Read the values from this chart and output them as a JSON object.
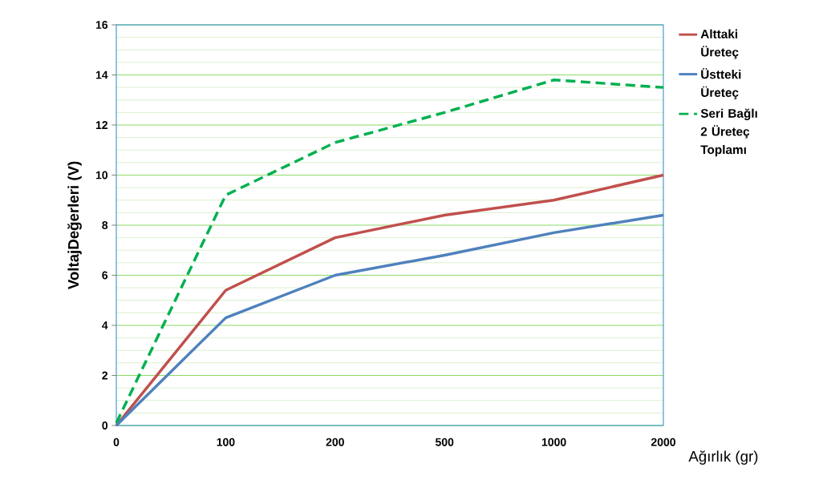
{
  "chart_data": {
    "type": "line",
    "xlabel": "Ağırlık (gr)",
    "ylabel": "VoltajDeğerleri (V)",
    "categories": [
      "0",
      "100",
      "200",
      "500",
      "1000",
      "2000"
    ],
    "series": [
      {
        "name": "Alttaki Üreteç",
        "color": "#c0504d",
        "values": [
          0,
          5.4,
          7.5,
          8.4,
          9.0,
          10.0
        ]
      },
      {
        "name": "Üstteki Üreteç",
        "color": "#4f81bd",
        "values": [
          0,
          4.3,
          6.0,
          6.8,
          7.7,
          8.4
        ]
      },
      {
        "name": "Seri Bağlı 2 Üreteç Toplamı",
        "color": "#00b050",
        "line_style": "dashed",
        "values": [
          0.1,
          9.2,
          11.3,
          12.5,
          13.8,
          13.5
        ]
      }
    ],
    "ylim": [
      0,
      16
    ],
    "yticks": [
      0,
      {
        "value": 0.5,
        "label": null
      },
      {
        "value": 1,
        "label": null
      },
      {
        "value": 1.5,
        "label": null
      },
      2,
      {
        "value": 2.5,
        "label": null
      },
      {
        "value": 3,
        "label": null
      },
      {
        "value": 3.5,
        "label": null
      },
      4,
      {
        "value": 4.5,
        "label": null
      },
      {
        "value": 5,
        "label": null
      },
      {
        "value": 5.5,
        "label": null
      },
      6,
      {
        "value": 6.5,
        "label": null
      },
      {
        "value": 7,
        "label": null
      },
      {
        "value": 7.5,
        "label": null
      },
      8,
      {
        "value": 8.5,
        "label": null
      },
      {
        "value": 9,
        "label": null
      },
      {
        "value": 9.5,
        "label": null
      },
      10,
      {
        "value": 10.5,
        "label": null
      },
      {
        "value": 11,
        "label": null
      },
      {
        "value": 11.5,
        "label": null
      },
      12,
      {
        "value": 12.5,
        "label": null
      },
      {
        "value": 13,
        "label": null
      },
      {
        "value": 13.5,
        "label": null
      },
      14,
      {
        "value": 14.5,
        "label": null
      },
      {
        "value": 15,
        "label": null
      },
      {
        "value": 15.5,
        "label": null
      },
      16
    ],
    "grid": "y",
    "legend": "right"
  }
}
